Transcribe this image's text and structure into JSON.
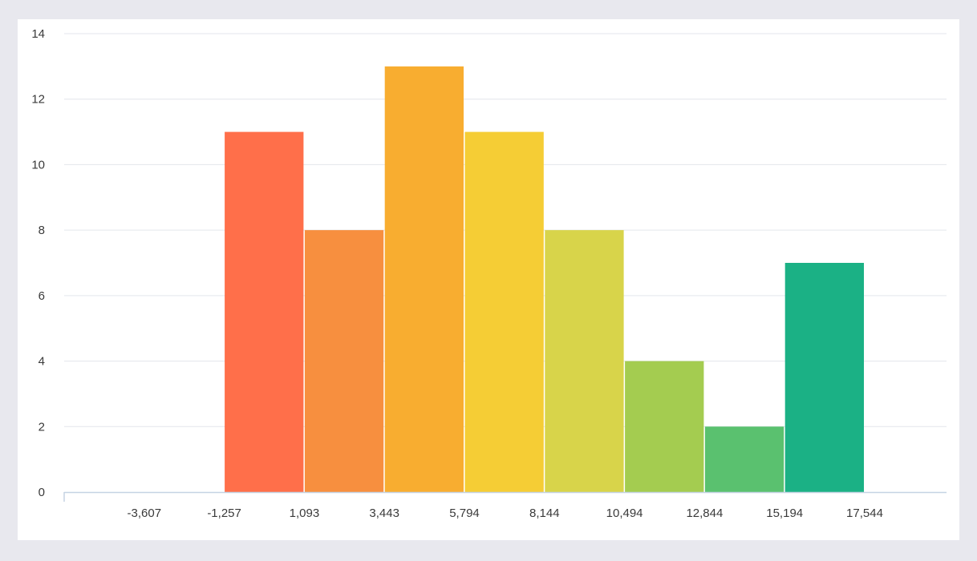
{
  "chart_data": {
    "type": "bar",
    "subtype": "histogram",
    "x_tick_labels": [
      "-3,607",
      "-1,257",
      "1,093",
      "3,443",
      "5,794",
      "8,144",
      "10,494",
      "12,844",
      "15,194",
      "17,544"
    ],
    "bins": [
      {
        "from": "-1,257",
        "to": "1,093",
        "count": 11,
        "color": "#ff6f4a"
      },
      {
        "from": "1,093",
        "to": "3,443",
        "count": 8,
        "color": "#f78f3f"
      },
      {
        "from": "3,443",
        "to": "5,794",
        "count": 13,
        "color": "#f8ad30"
      },
      {
        "from": "5,794",
        "to": "8,144",
        "count": 11,
        "color": "#f5cd35"
      },
      {
        "from": "8,144",
        "to": "10,494",
        "count": 8,
        "color": "#d8d44a"
      },
      {
        "from": "10,494",
        "to": "12,844",
        "count": 4,
        "color": "#a4cc50"
      },
      {
        "from": "12,844",
        "to": "15,194",
        "count": 2,
        "color": "#5ac16f"
      },
      {
        "from": "15,194",
        "to": "17,544",
        "count": 7,
        "color": "#1bb185"
      }
    ],
    "y_ticks": [
      0,
      2,
      4,
      6,
      8,
      10,
      12,
      14
    ],
    "ylim": [
      0,
      14
    ],
    "grid": "horizontal",
    "legend": "none",
    "title": "",
    "xlabel": "",
    "ylabel": ""
  }
}
